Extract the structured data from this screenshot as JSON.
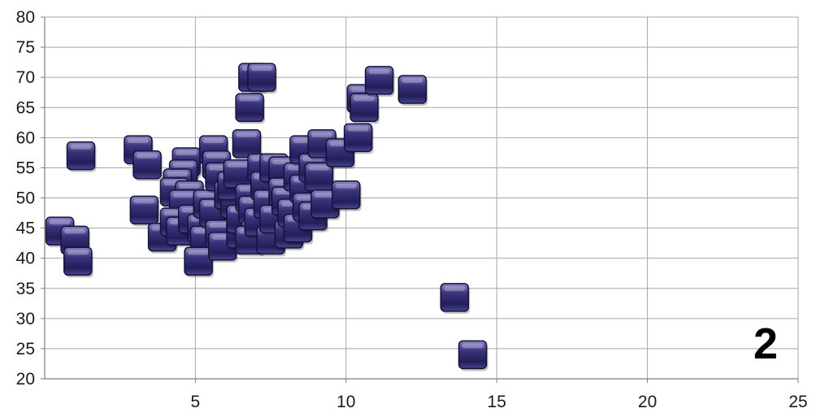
{
  "panel_label": "2",
  "colors": {
    "marker_fill": "#2e2a6b",
    "marker_dark": "#15123a",
    "marker_light": "#6c66b0",
    "grid": "#a6a6a6",
    "axis": "#7f7f7f"
  },
  "chart_data": {
    "type": "scatter",
    "title": "",
    "xlabel": "",
    "ylabel": "",
    "xlim": [
      0,
      25
    ],
    "ylim": [
      20,
      80
    ],
    "x_ticks": [
      5,
      10,
      15,
      20,
      25
    ],
    "y_ticks": [
      20,
      25,
      30,
      35,
      40,
      45,
      50,
      55,
      60,
      65,
      70,
      75,
      80
    ],
    "grid": true,
    "legend": "none",
    "marker": "square",
    "points": [
      {
        "x": 0.5,
        "y": 44.5
      },
      {
        "x": 1.0,
        "y": 43.0
      },
      {
        "x": 1.1,
        "y": 39.5
      },
      {
        "x": 1.2,
        "y": 57.0
      },
      {
        "x": 3.1,
        "y": 58.0
      },
      {
        "x": 3.4,
        "y": 55.5
      },
      {
        "x": 3.3,
        "y": 48.0
      },
      {
        "x": 3.9,
        "y": 43.5
      },
      {
        "x": 4.7,
        "y": 56.0
      },
      {
        "x": 4.6,
        "y": 54.0
      },
      {
        "x": 4.4,
        "y": 52.5
      },
      {
        "x": 4.3,
        "y": 51.0
      },
      {
        "x": 4.8,
        "y": 50.5
      },
      {
        "x": 4.6,
        "y": 49.0
      },
      {
        "x": 4.3,
        "y": 46.0
      },
      {
        "x": 4.5,
        "y": 44.5
      },
      {
        "x": 4.9,
        "y": 46.5
      },
      {
        "x": 5.2,
        "y": 45.0
      },
      {
        "x": 5.3,
        "y": 43.0
      },
      {
        "x": 5.1,
        "y": 39.5
      },
      {
        "x": 5.4,
        "y": 49.0
      },
      {
        "x": 5.6,
        "y": 58.0
      },
      {
        "x": 5.7,
        "y": 55.5
      },
      {
        "x": 5.8,
        "y": 53.5
      },
      {
        "x": 5.6,
        "y": 47.5
      },
      {
        "x": 5.8,
        "y": 44.0
      },
      {
        "x": 5.9,
        "y": 42.0
      },
      {
        "x": 6.1,
        "y": 50.5
      },
      {
        "x": 6.3,
        "y": 49.0
      },
      {
        "x": 6.2,
        "y": 52.0
      },
      {
        "x": 6.4,
        "y": 54.0
      },
      {
        "x": 6.5,
        "y": 44.0
      },
      {
        "x": 6.5,
        "y": 46.5
      },
      {
        "x": 6.7,
        "y": 59.0
      },
      {
        "x": 6.8,
        "y": 65.0
      },
      {
        "x": 6.9,
        "y": 70.0
      },
      {
        "x": 7.2,
        "y": 70.0
      },
      {
        "x": 6.8,
        "y": 50.0
      },
      {
        "x": 6.9,
        "y": 48.0
      },
      {
        "x": 7.0,
        "y": 44.0
      },
      {
        "x": 6.8,
        "y": 43.0
      },
      {
        "x": 7.2,
        "y": 55.0
      },
      {
        "x": 7.3,
        "y": 52.0
      },
      {
        "x": 7.1,
        "y": 46.0
      },
      {
        "x": 7.4,
        "y": 49.0
      },
      {
        "x": 7.5,
        "y": 43.0
      },
      {
        "x": 7.6,
        "y": 55.0
      },
      {
        "x": 7.6,
        "y": 46.5
      },
      {
        "x": 7.9,
        "y": 54.5
      },
      {
        "x": 7.9,
        "y": 51.0
      },
      {
        "x": 8.0,
        "y": 49.5
      },
      {
        "x": 8.1,
        "y": 44.0
      },
      {
        "x": 8.2,
        "y": 47.5
      },
      {
        "x": 8.4,
        "y": 45.0
      },
      {
        "x": 8.4,
        "y": 53.5
      },
      {
        "x": 8.6,
        "y": 58.0
      },
      {
        "x": 8.6,
        "y": 51.5
      },
      {
        "x": 8.7,
        "y": 48.5
      },
      {
        "x": 8.9,
        "y": 47.0
      },
      {
        "x": 8.9,
        "y": 55.0
      },
      {
        "x": 9.1,
        "y": 53.5
      },
      {
        "x": 9.3,
        "y": 49.0
      },
      {
        "x": 9.2,
        "y": 59.0
      },
      {
        "x": 9.8,
        "y": 57.5
      },
      {
        "x": 10.0,
        "y": 50.5
      },
      {
        "x": 10.4,
        "y": 60.0
      },
      {
        "x": 10.5,
        "y": 66.5
      },
      {
        "x": 10.6,
        "y": 65.0
      },
      {
        "x": 11.1,
        "y": 69.5
      },
      {
        "x": 12.2,
        "y": 68.0
      },
      {
        "x": 13.6,
        "y": 33.5
      },
      {
        "x": 14.2,
        "y": 24.0
      }
    ]
  }
}
